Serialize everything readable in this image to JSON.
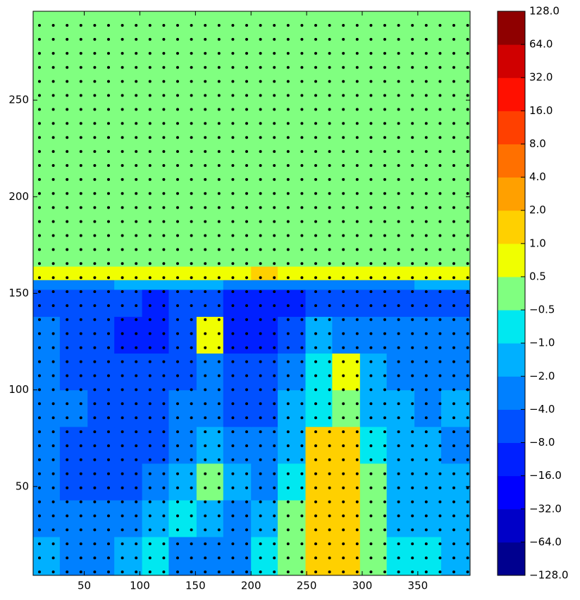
{
  "chart_data": {
    "type": "contourf",
    "xlim": [
      4,
      397
    ],
    "ylim": [
      4,
      296
    ],
    "xticks": [
      50,
      100,
      150,
      200,
      250,
      300,
      350
    ],
    "yticks": [
      50,
      100,
      150,
      200,
      250
    ],
    "levels": [
      {
        "value": -128,
        "label": "−128.0"
      },
      {
        "value": -64,
        "label": "−64.0"
      },
      {
        "value": -32,
        "label": "−32.0"
      },
      {
        "value": -16,
        "label": "−16.0"
      },
      {
        "value": -8,
        "label": "−8.0"
      },
      {
        "value": -4,
        "label": "−4.0"
      },
      {
        "value": -2,
        "label": "−2.0"
      },
      {
        "value": -1,
        "label": "−1.0"
      },
      {
        "value": -0.5,
        "label": "−0.5"
      },
      {
        "value": 0.5,
        "label": "0.5"
      },
      {
        "value": 1,
        "label": "1.0"
      },
      {
        "value": 2,
        "label": "2.0"
      },
      {
        "value": 4,
        "label": "4.0"
      },
      {
        "value": 8,
        "label": "8.0"
      },
      {
        "value": 16,
        "label": "16.0"
      },
      {
        "value": 32,
        "label": "32.0"
      },
      {
        "value": 64,
        "label": "64.0"
      },
      {
        "value": 128,
        "label": "128.0"
      }
    ],
    "colors": [
      "#00008f",
      "#0000c8",
      "#0000ff",
      "#0020ff",
      "#0050ff",
      "#0080ff",
      "#00b0ff",
      "#00e8f0",
      "#80ff80",
      "#f0ff00",
      "#ffd000",
      "#ffa000",
      "#ff7000",
      "#ff4000",
      "#ff1000",
      "#d00000",
      "#8f0000"
    ],
    "x_edges": [
      4,
      28,
      53,
      77,
      102,
      126,
      151,
      175,
      200,
      224,
      249,
      273,
      298,
      322,
      347,
      371,
      397
    ],
    "y_edges": [
      4,
      24,
      43,
      62,
      81,
      100,
      119,
      138,
      152,
      157,
      164,
      296
    ],
    "z": [
      [
        -2,
        -3,
        -3,
        -2,
        -1,
        -3,
        -3,
        -3,
        -1,
        0,
        1.5,
        1.5,
        0,
        -0.7,
        -1,
        -2
      ],
      [
        -3,
        -3,
        -3,
        -3,
        -2,
        -0.7,
        -2,
        -3,
        -1.5,
        0,
        1.5,
        1,
        0,
        -1.5,
        -2,
        -2
      ],
      [
        -3,
        -5,
        -5,
        -5,
        -3,
        -2,
        0,
        -2,
        -3,
        -1,
        1.5,
        1.5,
        0,
        -2,
        -1.5,
        -2
      ],
      [
        -3,
        -5,
        -6,
        -5,
        -5,
        -3,
        -2,
        -3,
        -3,
        -1.5,
        1.5,
        1.5,
        -0.7,
        -2,
        -2,
        -3
      ],
      [
        -3,
        -4,
        -6,
        -5,
        -5,
        -4,
        -3,
        -6,
        -5,
        -2,
        -0.7,
        0,
        -1.5,
        -2,
        -3,
        -2
      ],
      [
        -3,
        -5,
        -6,
        -6,
        -6,
        -5,
        -4,
        -6,
        -6,
        -3,
        -1,
        0.7,
        -1.5,
        -3,
        -3,
        -3
      ],
      [
        -4,
        -6,
        -8,
        -10,
        -10,
        -6,
        0.7,
        -12,
        -16,
        -6,
        -2,
        -3,
        -4,
        -4,
        -4,
        -4
      ],
      [
        -6,
        -6,
        -8,
        -8,
        -9,
        -6,
        -6,
        -10,
        -12,
        -10,
        -8,
        -8,
        -8,
        -6,
        -6,
        -6
      ],
      [
        -3,
        -3,
        -3,
        -2,
        -2,
        -2,
        -2,
        -3,
        -3,
        -3,
        -3,
        -3,
        -3,
        -3,
        -2,
        -2
      ],
      [
        0.7,
        0.7,
        0.7,
        0.7,
        0.7,
        0.7,
        0.7,
        0.8,
        1.2,
        0.8,
        0.7,
        0.7,
        0.7,
        0.7,
        0.7,
        0.7
      ],
      [
        0,
        0,
        0,
        0,
        0,
        0,
        0,
        0,
        0,
        0,
        0,
        0,
        0,
        0,
        0,
        0
      ]
    ]
  }
}
